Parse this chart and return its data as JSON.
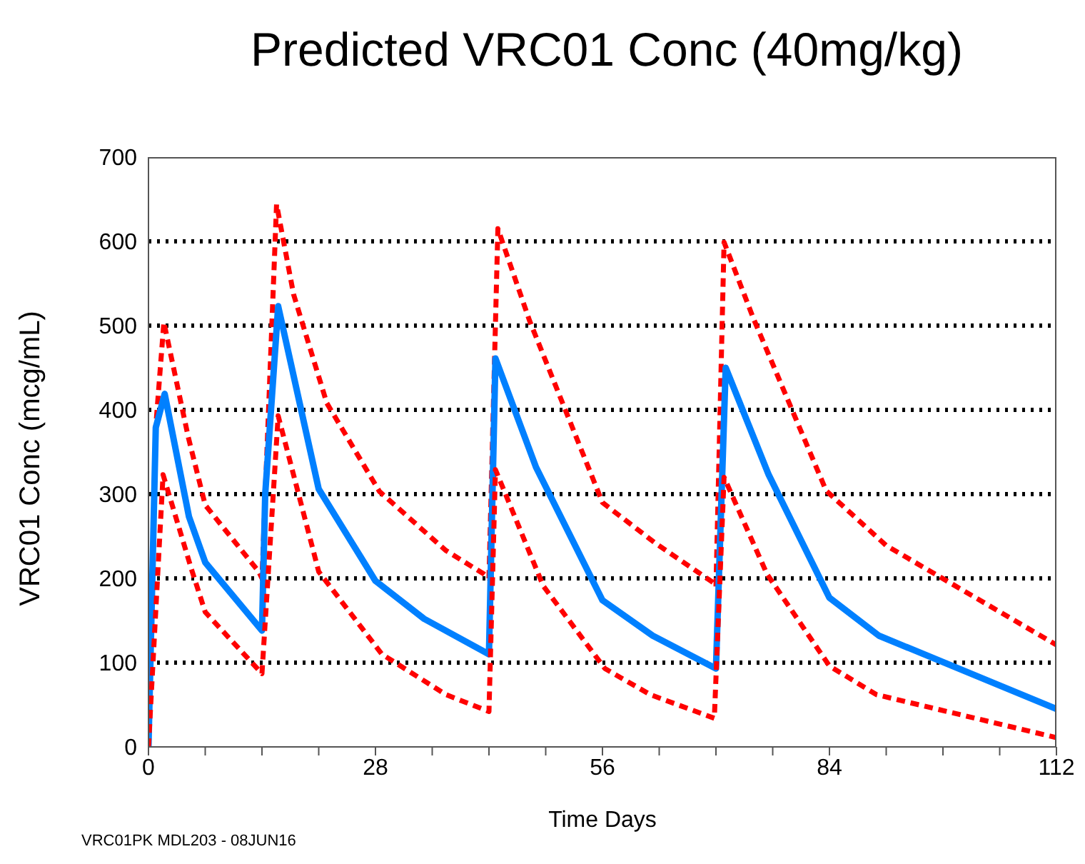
{
  "chart_data": {
    "type": "line",
    "title": "Predicted VRC01 Conc (40mg/kg)",
    "xlabel": "Time Days",
    "ylabel": "VRC01 Conc (mcg/mL)",
    "annotations": [
      "VRC01PK MDL203 - 08JUN16"
    ],
    "series": [
      {
        "color": "#ff0000",
        "line_style": "dashed",
        "x": [
          0,
          0.9,
          1.9,
          4.9,
          7,
          13.6,
          14,
          15.8,
          17.9,
          22,
          28.5,
          36.7,
          41.4,
          42,
          43.1,
          47,
          56,
          62.5,
          69.8,
          70,
          71,
          74.6,
          83.6,
          91,
          112
        ],
        "values": [
          0,
          380,
          504,
          368,
          287,
          208,
          200,
          644,
          537,
          408,
          303,
          233,
          205,
          200,
          615,
          506,
          290,
          242,
          194,
          190,
          599,
          509,
          304,
          239,
          121
        ]
      },
      {
        "color": "#0080ff",
        "line_style": "solid",
        "x": [
          0,
          0.9,
          2,
          5,
          7,
          14,
          14.4,
          16,
          21,
          28,
          34,
          42,
          42.8,
          47.8,
          56,
          62.2,
          70,
          71.2,
          76.5,
          84,
          90.1,
          112
        ],
        "values": [
          0,
          379,
          419,
          273,
          219,
          138,
          300,
          523,
          306,
          197,
          152,
          110,
          461,
          332,
          174,
          132,
          93,
          450,
          323,
          177,
          132,
          45
        ]
      },
      {
        "color": "#ff0000",
        "line_style": "dashed",
        "x": [
          0,
          1.8,
          5.3,
          7,
          14,
          16,
          21,
          28.8,
          36.7,
          42,
          42.8,
          48.7,
          56.3,
          61.9,
          69.8,
          71,
          76.3,
          84,
          89.8,
          112
        ],
        "values": [
          0,
          323,
          211,
          160,
          87,
          393,
          208,
          110,
          62,
          42,
          329,
          191,
          93,
          62,
          34,
          320,
          205,
          96,
          62,
          11
        ]
      }
    ],
    "xlim": [
      0,
      112
    ],
    "xticks": [
      0,
      {
        "value": 7,
        "label": null
      },
      {
        "value": 14,
        "label": null
      },
      {
        "value": 21,
        "label": null
      },
      28,
      {
        "value": 35,
        "label": null
      },
      {
        "value": 42,
        "label": null
      },
      {
        "value": 49,
        "label": null
      },
      56,
      {
        "value": 63,
        "label": null
      },
      {
        "value": 70,
        "label": null
      },
      {
        "value": 77,
        "label": null
      },
      84,
      {
        "value": 91,
        "label": null
      },
      {
        "value": 98,
        "label": null
      },
      {
        "value": 105,
        "label": null
      },
      112
    ],
    "ylim": [
      0,
      700
    ],
    "yticks": [
      0,
      100,
      200,
      300,
      400,
      500,
      600,
      700
    ],
    "grid": "y",
    "marker": "none"
  }
}
